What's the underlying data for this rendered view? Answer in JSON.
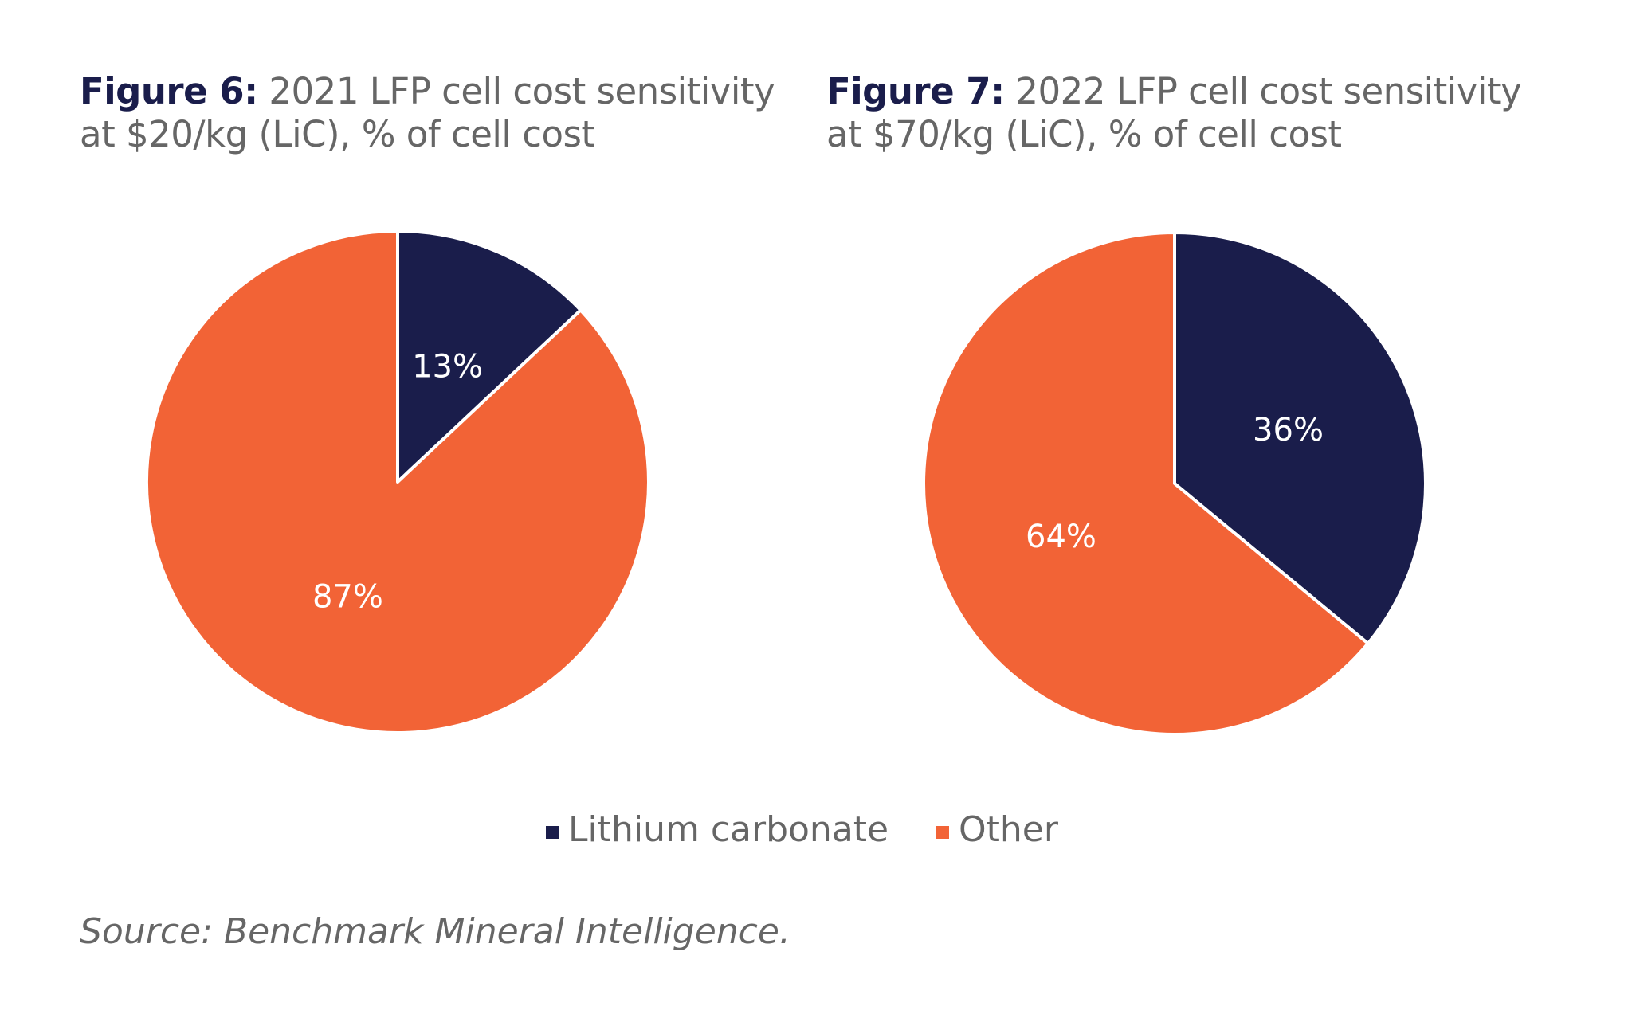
{
  "chart_data": [
    {
      "type": "pie",
      "title_bold": "Figure 6:",
      "title_line1": "2021 LFP cell cost sensitivity",
      "title_line2": "at $20/kg (LiC), % of cell cost",
      "categories": [
        "Lithium carbonate",
        "Other"
      ],
      "values": [
        13,
        87
      ],
      "labels": [
        "13%",
        "87%"
      ],
      "colors": [
        "#1a1d4b",
        "#f26336"
      ]
    },
    {
      "type": "pie",
      "title_bold": "Figure 7:",
      "title_line1": "2022 LFP cell cost sensitivity",
      "title_line2": "at $70/kg (LiC), % of cell cost",
      "categories": [
        "Lithium carbonate",
        "Other"
      ],
      "values": [
        36,
        64
      ],
      "labels": [
        "36%",
        "64%"
      ],
      "colors": [
        "#1a1d4b",
        "#f26336"
      ]
    }
  ],
  "legend": {
    "placement": "bottom",
    "items": [
      {
        "label": "Lithium carbonate",
        "color": "#1a1d4b"
      },
      {
        "label": "Other",
        "color": "#f26336"
      }
    ]
  },
  "source": "Source: Benchmark Mineral Intelligence."
}
